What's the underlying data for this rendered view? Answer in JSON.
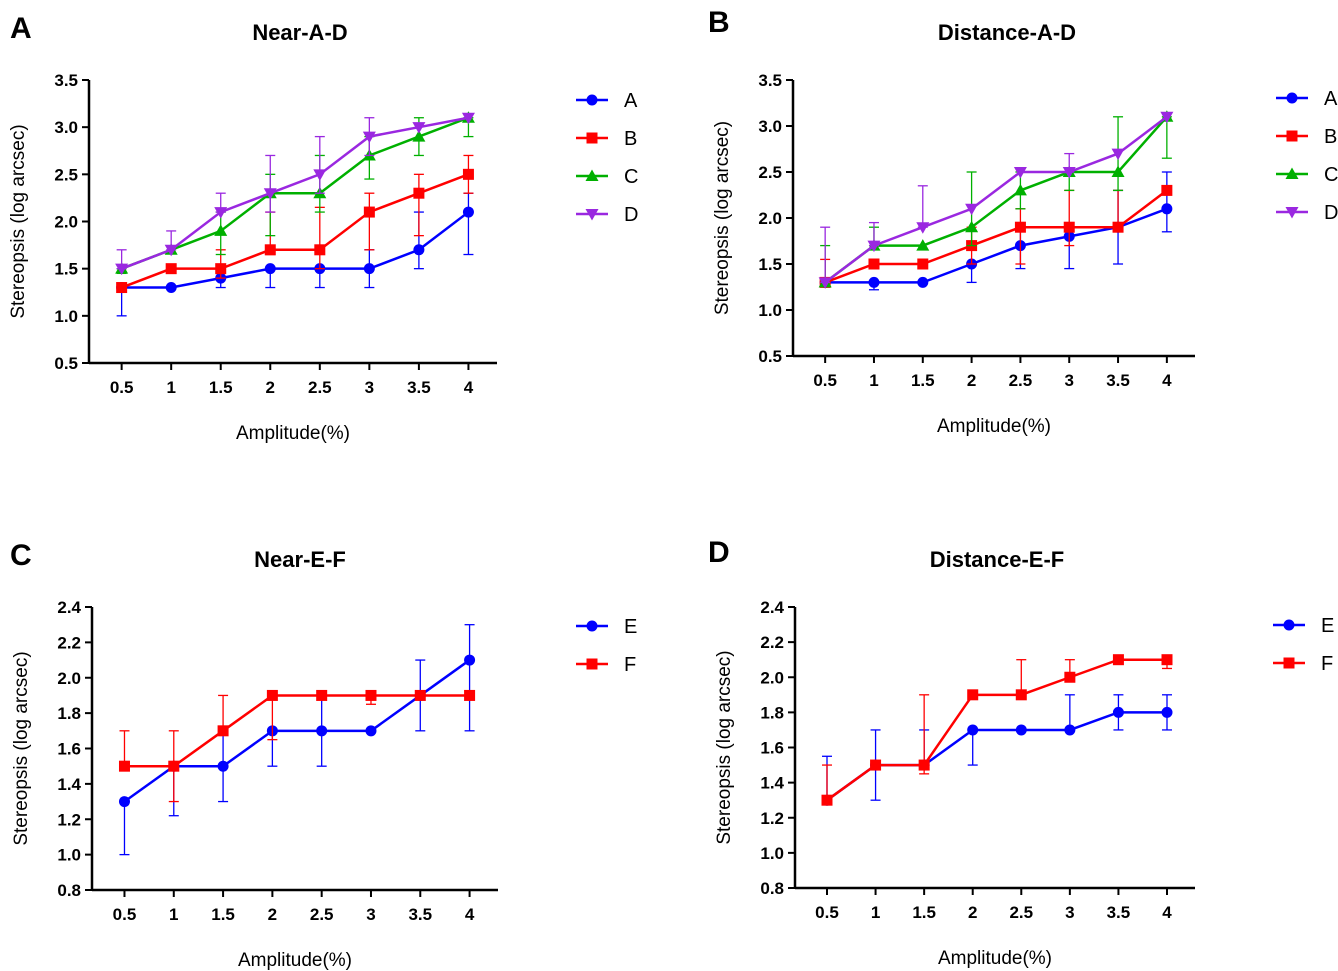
{
  "chart_data": [
    {
      "panel": "A",
      "type": "line",
      "title": "Near-A-D",
      "xlabel": "Amplitude(%)",
      "ylabel": "Stereopsis (log arcsec)",
      "categories": [
        "0.5",
        "1",
        "1.5",
        "2",
        "2.5",
        "3",
        "3.5",
        "4"
      ],
      "ylim": [
        0.5,
        3.5
      ],
      "yticks": [
        "0.5",
        "1.0",
        "1.5",
        "2.0",
        "2.5",
        "3.0",
        "3.5"
      ],
      "legend_position": "right",
      "series": [
        {
          "name": "A",
          "color": "#0000ff",
          "marker": "circle",
          "values": [
            1.3,
            1.3,
            1.4,
            1.5,
            1.5,
            1.5,
            1.7,
            2.1
          ],
          "err_low": [
            1.0,
            1.3,
            1.3,
            1.3,
            1.3,
            1.3,
            1.5,
            1.65
          ],
          "err_high": [
            1.3,
            1.3,
            1.45,
            1.5,
            1.5,
            1.7,
            2.1,
            2.3
          ]
        },
        {
          "name": "B",
          "color": "#ff0000",
          "marker": "square",
          "values": [
            1.3,
            1.5,
            1.5,
            1.7,
            1.7,
            2.1,
            2.3,
            2.5
          ],
          "err_low": [
            1.3,
            1.5,
            1.4,
            1.65,
            1.5,
            1.7,
            1.85,
            2.3
          ],
          "err_high": [
            1.3,
            1.5,
            1.7,
            2.1,
            2.15,
            2.3,
            2.5,
            2.7
          ]
        },
        {
          "name": "C",
          "color": "#00b000",
          "marker": "triangle-up",
          "values": [
            1.5,
            1.7,
            1.9,
            2.3,
            2.3,
            2.7,
            2.9,
            3.1
          ],
          "err_low": [
            1.45,
            1.7,
            1.65,
            1.85,
            2.1,
            2.45,
            2.7,
            2.9
          ],
          "err_high": [
            1.5,
            1.7,
            2.1,
            2.5,
            2.7,
            2.9,
            3.1,
            3.1
          ]
        },
        {
          "name": "D",
          "color": "#9a28e0",
          "marker": "triangle-down",
          "values": [
            1.5,
            1.7,
            2.1,
            2.3,
            2.5,
            2.9,
            3.0,
            3.1
          ],
          "err_low": [
            1.5,
            1.7,
            2.1,
            2.1,
            2.3,
            2.7,
            3.0,
            3.1
          ],
          "err_high": [
            1.7,
            1.9,
            2.3,
            2.7,
            2.9,
            3.1,
            3.0,
            3.1
          ]
        }
      ]
    },
    {
      "panel": "B",
      "type": "line",
      "title": "Distance-A-D",
      "xlabel": "Amplitude(%)",
      "ylabel": "Stereopsis (log arcsec)",
      "categories": [
        "0.5",
        "1",
        "1.5",
        "2",
        "2.5",
        "3",
        "3.5",
        "4"
      ],
      "ylim": [
        0.5,
        3.5
      ],
      "yticks": [
        "0.5",
        "1.0",
        "1.5",
        "2.0",
        "2.5",
        "3.0",
        "3.5"
      ],
      "legend_position": "right",
      "series": [
        {
          "name": "A",
          "color": "#0000ff",
          "marker": "circle",
          "values": [
            1.3,
            1.3,
            1.3,
            1.5,
            1.7,
            1.8,
            1.9,
            2.1
          ],
          "err_low": [
            1.25,
            1.22,
            1.3,
            1.3,
            1.45,
            1.45,
            1.5,
            1.85
          ],
          "err_high": [
            1.3,
            1.3,
            1.3,
            1.5,
            1.9,
            1.9,
            2.3,
            2.5
          ]
        },
        {
          "name": "B",
          "color": "#ff0000",
          "marker": "square",
          "values": [
            1.3,
            1.5,
            1.5,
            1.7,
            1.9,
            1.9,
            1.9,
            2.3
          ],
          "err_low": [
            1.3,
            1.5,
            1.5,
            1.5,
            1.5,
            1.7,
            1.9,
            2.3
          ],
          "err_high": [
            1.55,
            1.5,
            1.5,
            1.9,
            2.1,
            2.3,
            2.3,
            2.3
          ]
        },
        {
          "name": "C",
          "color": "#00b000",
          "marker": "triangle-up",
          "values": [
            1.3,
            1.7,
            1.7,
            1.9,
            2.3,
            2.5,
            2.5,
            3.1
          ],
          "err_low": [
            1.3,
            1.7,
            1.7,
            1.7,
            2.1,
            2.3,
            2.3,
            2.65
          ],
          "err_high": [
            1.7,
            1.9,
            1.7,
            2.5,
            2.5,
            2.5,
            3.1,
            3.1
          ]
        },
        {
          "name": "D",
          "color": "#9a28e0",
          "marker": "triangle-down",
          "values": [
            1.3,
            1.7,
            1.9,
            2.1,
            2.5,
            2.5,
            2.7,
            3.1
          ],
          "err_low": [
            1.3,
            1.7,
            1.9,
            2.1,
            2.5,
            2.5,
            2.7,
            3.1
          ],
          "err_high": [
            1.9,
            1.95,
            2.35,
            2.1,
            2.5,
            2.7,
            2.7,
            3.1
          ]
        }
      ]
    },
    {
      "panel": "C",
      "type": "line",
      "title": "Near-E-F",
      "xlabel": "Amplitude(%)",
      "ylabel": "Stereopsis (log arcsec)",
      "categories": [
        "0.5",
        "1",
        "1.5",
        "2",
        "2.5",
        "3",
        "3.5",
        "4"
      ],
      "ylim": [
        0.8,
        2.4
      ],
      "yticks": [
        "0.8",
        "1.0",
        "1.2",
        "1.4",
        "1.6",
        "1.8",
        "2.0",
        "2.2",
        "2.4"
      ],
      "legend_position": "right",
      "series": [
        {
          "name": "E",
          "color": "#0000ff",
          "marker": "circle",
          "values": [
            1.3,
            1.5,
            1.5,
            1.7,
            1.7,
            1.7,
            1.9,
            2.1
          ],
          "err_low": [
            1.0,
            1.22,
            1.3,
            1.5,
            1.5,
            1.7,
            1.7,
            1.7
          ],
          "err_high": [
            1.3,
            1.5,
            1.7,
            1.7,
            1.9,
            1.7,
            2.1,
            2.3
          ]
        },
        {
          "name": "F",
          "color": "#ff0000",
          "marker": "square",
          "values": [
            1.5,
            1.5,
            1.7,
            1.9,
            1.9,
            1.9,
            1.9,
            1.9
          ],
          "err_low": [
            1.5,
            1.3,
            1.7,
            1.65,
            1.9,
            1.85,
            1.9,
            1.9
          ],
          "err_high": [
            1.7,
            1.7,
            1.9,
            1.9,
            1.9,
            1.9,
            1.9,
            1.9
          ]
        }
      ]
    },
    {
      "panel": "D",
      "type": "line",
      "title": "Distance-E-F",
      "xlabel": "Amplitude(%)",
      "ylabel": "Stereopsis (log arcsec)",
      "categories": [
        "0.5",
        "1",
        "1.5",
        "2",
        "2.5",
        "3",
        "3.5",
        "4"
      ],
      "ylim": [
        0.8,
        2.4
      ],
      "yticks": [
        "0.8",
        "1.0",
        "1.2",
        "1.4",
        "1.6",
        "1.8",
        "2.0",
        "2.2",
        "2.4"
      ],
      "legend_position": "right",
      "series": [
        {
          "name": "E",
          "color": "#0000ff",
          "marker": "circle",
          "values": [
            1.3,
            1.5,
            1.5,
            1.7,
            1.7,
            1.7,
            1.8,
            1.8
          ],
          "err_low": [
            1.28,
            1.3,
            1.5,
            1.5,
            1.7,
            1.7,
            1.7,
            1.7
          ],
          "err_high": [
            1.55,
            1.7,
            1.7,
            1.7,
            1.7,
            1.9,
            1.9,
            1.9
          ]
        },
        {
          "name": "F",
          "color": "#ff0000",
          "marker": "square",
          "values": [
            1.3,
            1.5,
            1.5,
            1.9,
            1.9,
            2.0,
            2.1,
            2.1
          ],
          "err_low": [
            1.3,
            1.5,
            1.45,
            1.9,
            1.9,
            2.0,
            2.1,
            2.05
          ],
          "err_high": [
            1.5,
            1.5,
            1.9,
            1.9,
            2.1,
            2.1,
            2.1,
            2.1
          ]
        }
      ]
    }
  ]
}
